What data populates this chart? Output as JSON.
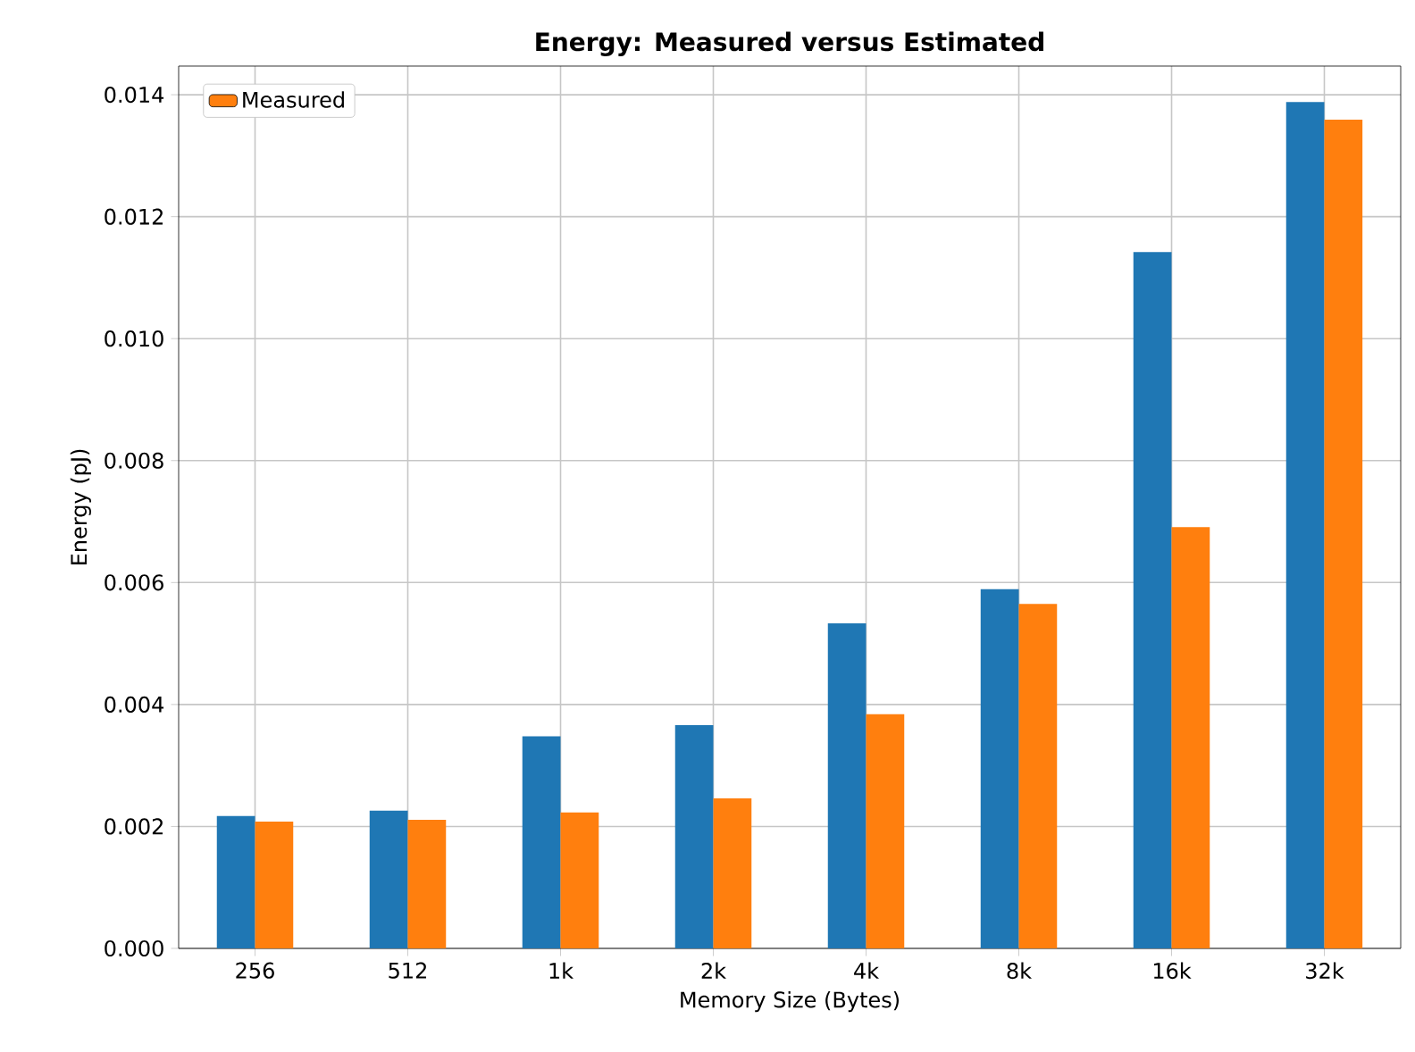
{
  "chart_data": {
    "type": "bar",
    "title": "Energy: Measured versus Estimated",
    "xlabel": "Memory Size (Bytes)",
    "ylabel": "Energy (pJ)",
    "categories": [
      "256",
      "512",
      "1k",
      "2k",
      "4k",
      "8k",
      "16k",
      "32k"
    ],
    "series": [
      {
        "color": "#1f77b4",
        "values": [
          0.00217,
          0.00226,
          0.00348,
          0.00366,
          0.00533,
          0.00589,
          0.01142,
          0.01388
        ]
      },
      {
        "name": "Measured",
        "color": "#ff7f0e",
        "values": [
          0.00208,
          0.00211,
          0.00223,
          0.00246,
          0.00384,
          0.00565,
          0.00691,
          0.01359
        ]
      }
    ],
    "ylim": [
      0,
      0.01447
    ],
    "yticks": [
      {
        "value": 0,
        "label": "0.000"
      },
      {
        "value": 0.002,
        "label": "0.002"
      },
      {
        "value": 0.004,
        "label": "0.004"
      },
      {
        "value": 0.006,
        "label": "0.006"
      },
      {
        "value": 0.008,
        "label": "0.008"
      },
      {
        "value": 0.01,
        "label": "0.010"
      },
      {
        "value": 0.012,
        "label": "0.012"
      },
      {
        "value": 0.014,
        "label": "0.014"
      }
    ],
    "grid": true,
    "legend": "top left"
  }
}
